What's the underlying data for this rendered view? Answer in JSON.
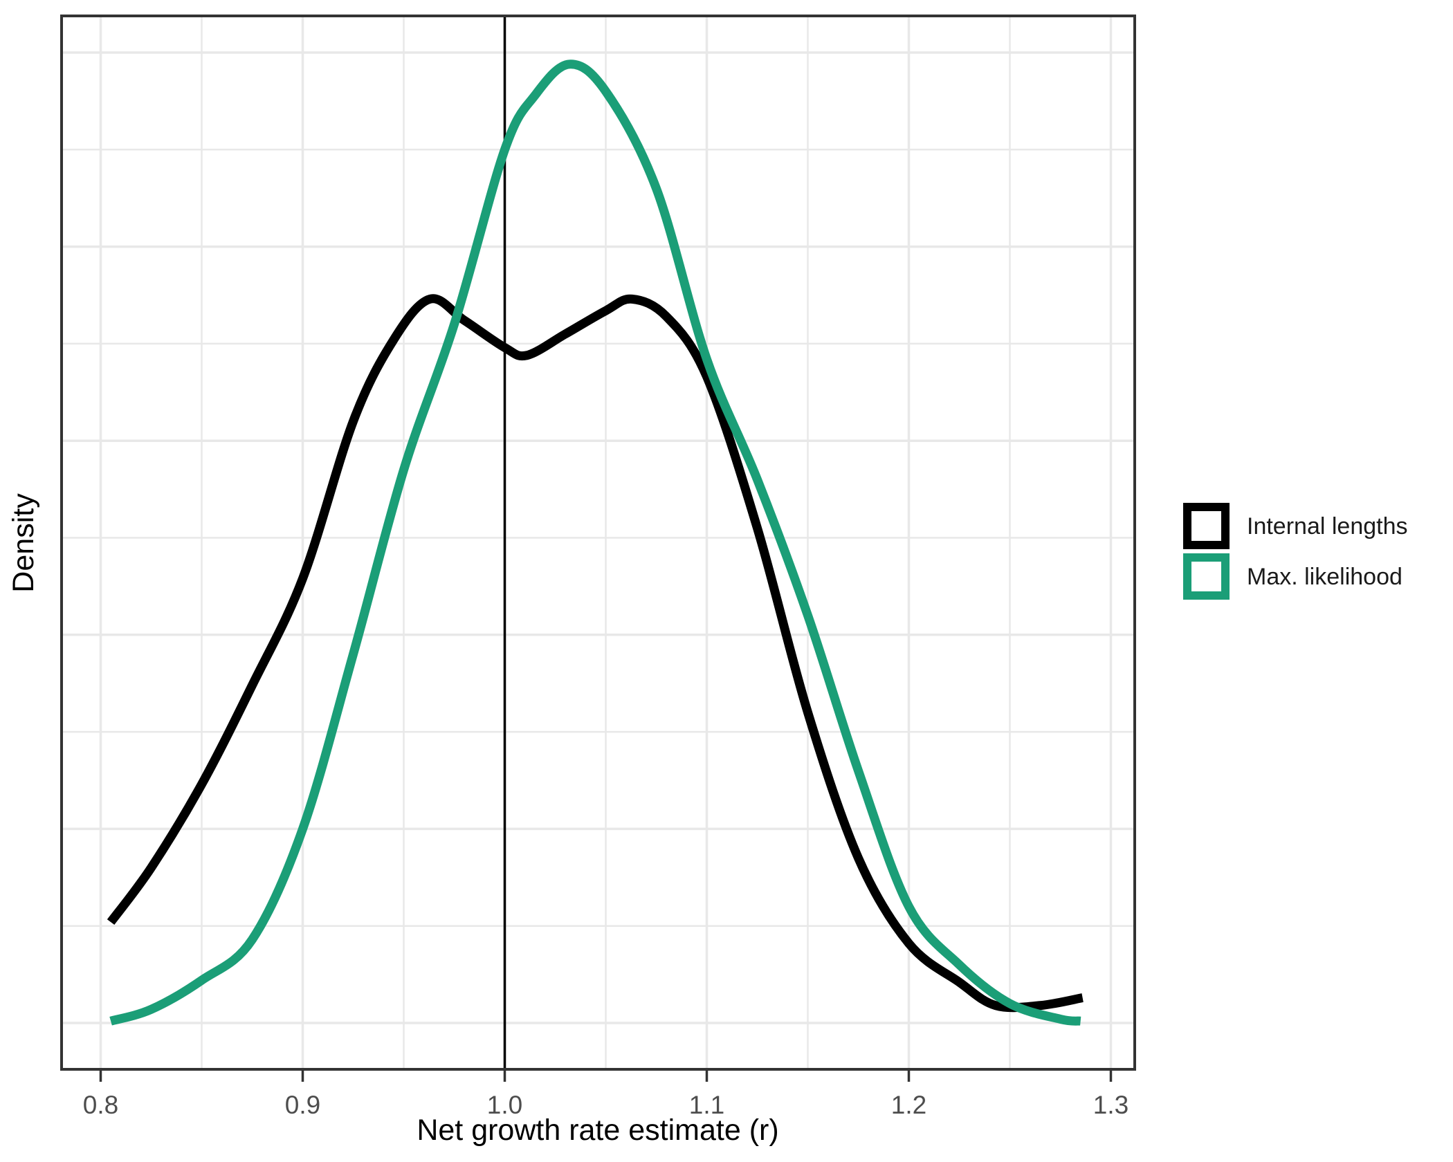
{
  "axes": {
    "x_title": "Net growth rate estimate (r)",
    "y_title": "Density"
  },
  "legend": {
    "item1": "Internal lengths",
    "item2": "Max. likelihood"
  },
  "colors": {
    "series_black": "#000000",
    "series_green": "#1b9e77",
    "grid": "#e8e8e8",
    "axis_text": "#4d4d4d",
    "panel_border": "#333333",
    "reference_line": "#000000"
  },
  "chart_data": {
    "type": "line",
    "subtype": "kernel-density",
    "title": "",
    "xlabel": "Net growth rate estimate (r)",
    "ylabel": "Density",
    "x_ticks": [
      0.8,
      0.9,
      1.0,
      1.1,
      1.2,
      1.3
    ],
    "x_tick_labels": [
      "0.8",
      "0.9",
      "1.0",
      "1.1",
      "1.2",
      "1.3"
    ],
    "x_minor_ticks": [
      0.85,
      0.95,
      1.05,
      1.15,
      1.25
    ],
    "xlim": [
      0.781,
      1.312
    ],
    "y_axis_labeled": false,
    "y_gridline_values": [
      0,
      0.5,
      1.0,
      1.5,
      2.0,
      2.5,
      3.0,
      3.5,
      4.0,
      4.5,
      5.0
    ],
    "ylim": [
      -0.24,
      5.19
    ],
    "grid": "on",
    "legend_position": "right",
    "reference_vline_x": 1.0,
    "series": [
      {
        "name": "Internal lengths",
        "color": "#000000",
        "points": [
          [
            0.805,
            0.52
          ],
          [
            0.825,
            0.8
          ],
          [
            0.85,
            1.23
          ],
          [
            0.875,
            1.74
          ],
          [
            0.9,
            2.29
          ],
          [
            0.925,
            3.1
          ],
          [
            0.945,
            3.52
          ],
          [
            0.963,
            3.73
          ],
          [
            0.98,
            3.62
          ],
          [
            1.0,
            3.48
          ],
          [
            1.011,
            3.44
          ],
          [
            1.03,
            3.55
          ],
          [
            1.05,
            3.67
          ],
          [
            1.063,
            3.73
          ],
          [
            1.08,
            3.64
          ],
          [
            1.1,
            3.33
          ],
          [
            1.125,
            2.55
          ],
          [
            1.15,
            1.6
          ],
          [
            1.175,
            0.85
          ],
          [
            1.2,
            0.41
          ],
          [
            1.225,
            0.21
          ],
          [
            1.243,
            0.09
          ],
          [
            1.265,
            0.09
          ],
          [
            1.286,
            0.13
          ]
        ]
      },
      {
        "name": "Max. likelihood",
        "color": "#1b9e77",
        "points": [
          [
            0.805,
            0.01
          ],
          [
            0.825,
            0.07
          ],
          [
            0.85,
            0.22
          ],
          [
            0.875,
            0.43
          ],
          [
            0.9,
            1.0
          ],
          [
            0.925,
            1.9
          ],
          [
            0.95,
            2.85
          ],
          [
            0.975,
            3.6
          ],
          [
            1.0,
            4.5
          ],
          [
            1.015,
            4.78
          ],
          [
            1.032,
            4.94
          ],
          [
            1.05,
            4.8
          ],
          [
            1.075,
            4.3
          ],
          [
            1.1,
            3.42
          ],
          [
            1.125,
            2.8
          ],
          [
            1.15,
            2.1
          ],
          [
            1.175,
            1.3
          ],
          [
            1.2,
            0.6
          ],
          [
            1.225,
            0.3
          ],
          [
            1.25,
            0.1
          ],
          [
            1.275,
            0.02
          ],
          [
            1.285,
            0.01
          ]
        ]
      }
    ]
  }
}
